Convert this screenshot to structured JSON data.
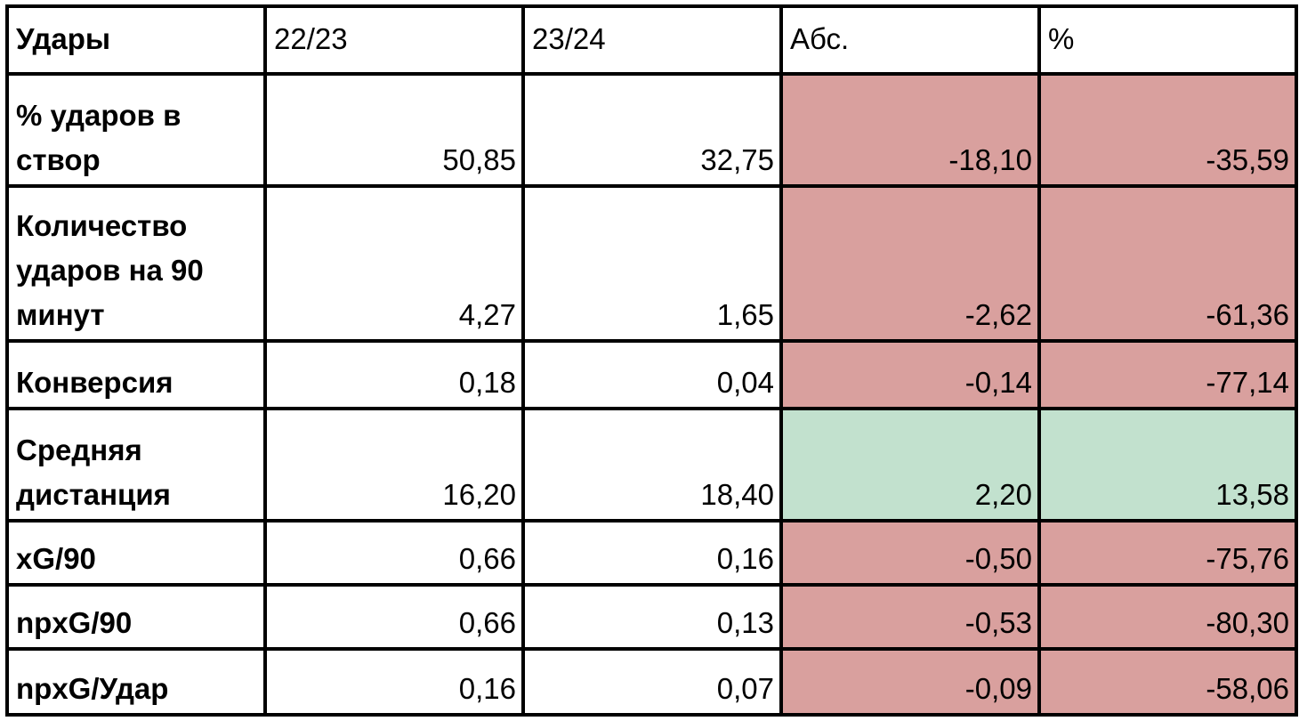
{
  "colors": {
    "negative": "#d9a09e",
    "positive": "#c2e1ce",
    "neutral": "#ffffff"
  },
  "headers": [
    "Удары",
    "22/23",
    "23/24",
    "Абс.",
    "%"
  ],
  "rows": [
    {
      "label": "% ударов в створ",
      "v1": "50,85",
      "v2": "32,75",
      "abs": "-18,10",
      "pct": "-35,59",
      "trend": "negative"
    },
    {
      "label": "Количество ударов на 90 минут",
      "v1": "4,27",
      "v2": "1,65",
      "abs": "-2,62",
      "pct": "-61,36",
      "trend": "negative"
    },
    {
      "label": "Конверсия",
      "v1": "0,18",
      "v2": "0,04",
      "abs": "-0,14",
      "pct": "-77,14",
      "trend": "negative"
    },
    {
      "label": "Средняя дистанция",
      "v1": "16,20",
      "v2": "18,40",
      "abs": "2,20",
      "pct": "13,58",
      "trend": "positive"
    },
    {
      "label": "xG/90",
      "v1": "0,66",
      "v2": "0,16",
      "abs": "-0,50",
      "pct": "-75,76",
      "trend": "negative"
    },
    {
      "label": "npxG/90",
      "v1": "0,66",
      "v2": "0,13",
      "abs": "-0,53",
      "pct": "-80,30",
      "trend": "negative"
    },
    {
      "label": "npxG/Удар",
      "v1": "0,16",
      "v2": "0,07",
      "abs": "-0,09",
      "pct": "-58,06",
      "trend": "negative"
    }
  ]
}
